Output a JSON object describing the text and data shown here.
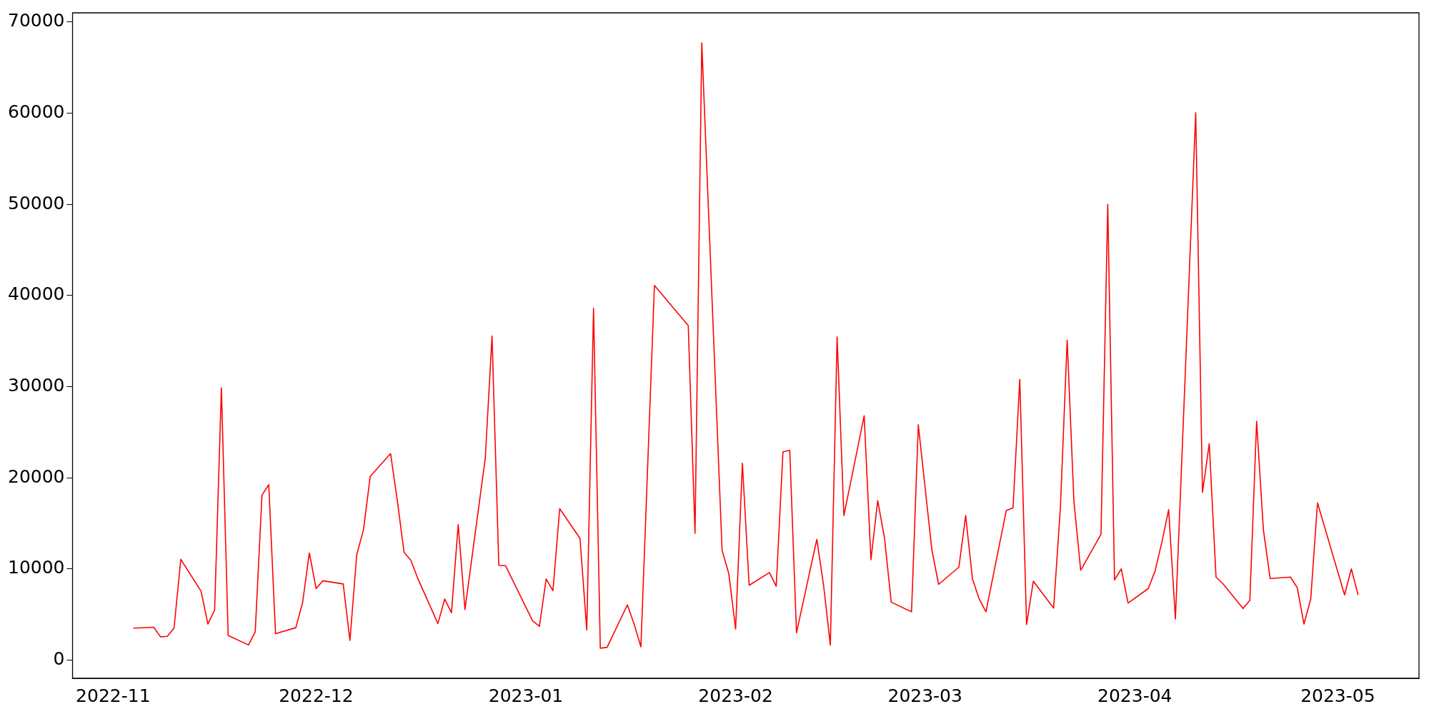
{
  "chart_data": {
    "type": "line",
    "x": [
      "2022-11-04",
      "2022-11-07",
      "2022-11-08",
      "2022-11-09",
      "2022-11-10",
      "2022-11-11",
      "2022-11-14",
      "2022-11-15",
      "2022-11-16",
      "2022-11-17",
      "2022-11-18",
      "2022-11-21",
      "2022-11-22",
      "2022-11-23",
      "2022-11-24",
      "2022-11-25",
      "2022-11-28",
      "2022-11-29",
      "2022-11-30",
      "2022-12-01",
      "2022-12-02",
      "2022-12-05",
      "2022-12-06",
      "2022-12-07",
      "2022-12-08",
      "2022-12-09",
      "2022-12-12",
      "2022-12-13",
      "2022-12-14",
      "2022-12-15",
      "2022-12-16",
      "2022-12-19",
      "2022-12-20",
      "2022-12-21",
      "2022-12-22",
      "2022-12-23",
      "2022-12-26",
      "2022-12-27",
      "2022-12-28",
      "2022-12-29",
      "2023-01-02",
      "2023-01-03",
      "2023-01-04",
      "2023-01-05",
      "2023-01-06",
      "2023-01-09",
      "2023-01-10",
      "2023-01-11",
      "2023-01-12",
      "2023-01-13",
      "2023-01-16",
      "2023-01-17",
      "2023-01-18",
      "2023-01-20",
      "2023-01-25",
      "2023-01-26",
      "2023-01-27",
      "2023-01-30",
      "2023-01-31",
      "2023-02-01",
      "2023-02-02",
      "2023-02-03",
      "2023-02-06",
      "2023-02-07",
      "2023-02-08",
      "2023-02-09",
      "2023-02-10",
      "2023-02-13",
      "2023-02-14",
      "2023-02-15",
      "2023-02-16",
      "2023-02-17",
      "2023-02-20",
      "2023-02-21",
      "2023-02-22",
      "2023-02-23",
      "2023-02-24",
      "2023-02-27",
      "2023-02-28",
      "2023-03-02",
      "2023-03-03",
      "2023-03-06",
      "2023-03-07",
      "2023-03-08",
      "2023-03-09",
      "2023-03-10",
      "2023-03-13",
      "2023-03-14",
      "2023-03-15",
      "2023-03-16",
      "2023-03-17",
      "2023-03-20",
      "2023-03-21",
      "2023-03-22",
      "2023-03-23",
      "2023-03-24",
      "2023-03-27",
      "2023-03-28",
      "2023-03-29",
      "2023-03-30",
      "2023-03-31",
      "2023-04-03",
      "2023-04-04",
      "2023-04-05",
      "2023-04-06",
      "2023-04-07",
      "2023-04-10",
      "2023-04-11",
      "2023-04-12",
      "2023-04-13",
      "2023-04-14",
      "2023-04-17",
      "2023-04-18",
      "2023-04-19",
      "2023-04-20",
      "2023-04-21",
      "2023-04-24",
      "2023-04-25",
      "2023-04-26",
      "2023-04-27",
      "2023-04-28",
      "2023-05-02",
      "2023-05-03",
      "2023-05-04"
    ],
    "series": [
      {
        "color": "#ff0000",
        "values": [
          3500,
          3600,
          2550,
          2600,
          3500,
          11050,
          7550,
          3950,
          5500,
          29850,
          2700,
          1650,
          3100,
          18100,
          19250,
          2900,
          3550,
          6300,
          11750,
          7850,
          8700,
          8350,
          2150,
          11550,
          14300,
          20150,
          22650,
          17500,
          11800,
          10950,
          9000,
          4000,
          6700,
          5200,
          14850,
          5550,
          22150,
          35550,
          10400,
          10350,
          4300,
          3700,
          8900,
          7600,
          16600,
          13350,
          3300,
          38600,
          1300,
          1400,
          6050,
          3950,
          1450,
          41100,
          36700,
          13900,
          67700,
          12050,
          9450,
          3400,
          21600,
          8200,
          9600,
          8100,
          22850,
          23000,
          3000,
          13250,
          8200,
          1650,
          35450,
          15850,
          26800,
          11000,
          17500,
          13400,
          6350,
          5300,
          25800,
          12100,
          8300,
          10200,
          15850,
          8900,
          6700,
          5300,
          16400,
          16700,
          30800,
          3900,
          8650,
          5700,
          16700,
          35100,
          17400,
          9850,
          13800,
          50000,
          8800,
          10000,
          6250,
          7850,
          9800,
          12950,
          16500,
          4500,
          60050,
          18400,
          23750,
          9100,
          8400,
          5650,
          6550,
          26200,
          14300,
          8950,
          9100,
          7950,
          3950,
          6700,
          17250,
          7150,
          10000,
          7150
        ]
      }
    ],
    "xlim": [
      "2022-10-26",
      "2023-05-13"
    ],
    "xticks": [
      "2022-11",
      "2022-12",
      "2023-01",
      "2023-02",
      "2023-03",
      "2023-04",
      "2023-05"
    ],
    "ylim": [
      -2000,
      71000
    ],
    "yticks": [
      0,
      10000,
      20000,
      30000,
      40000,
      50000,
      60000,
      70000
    ],
    "grid": false,
    "legend": false,
    "marker": "none",
    "line_style": "solid"
  }
}
